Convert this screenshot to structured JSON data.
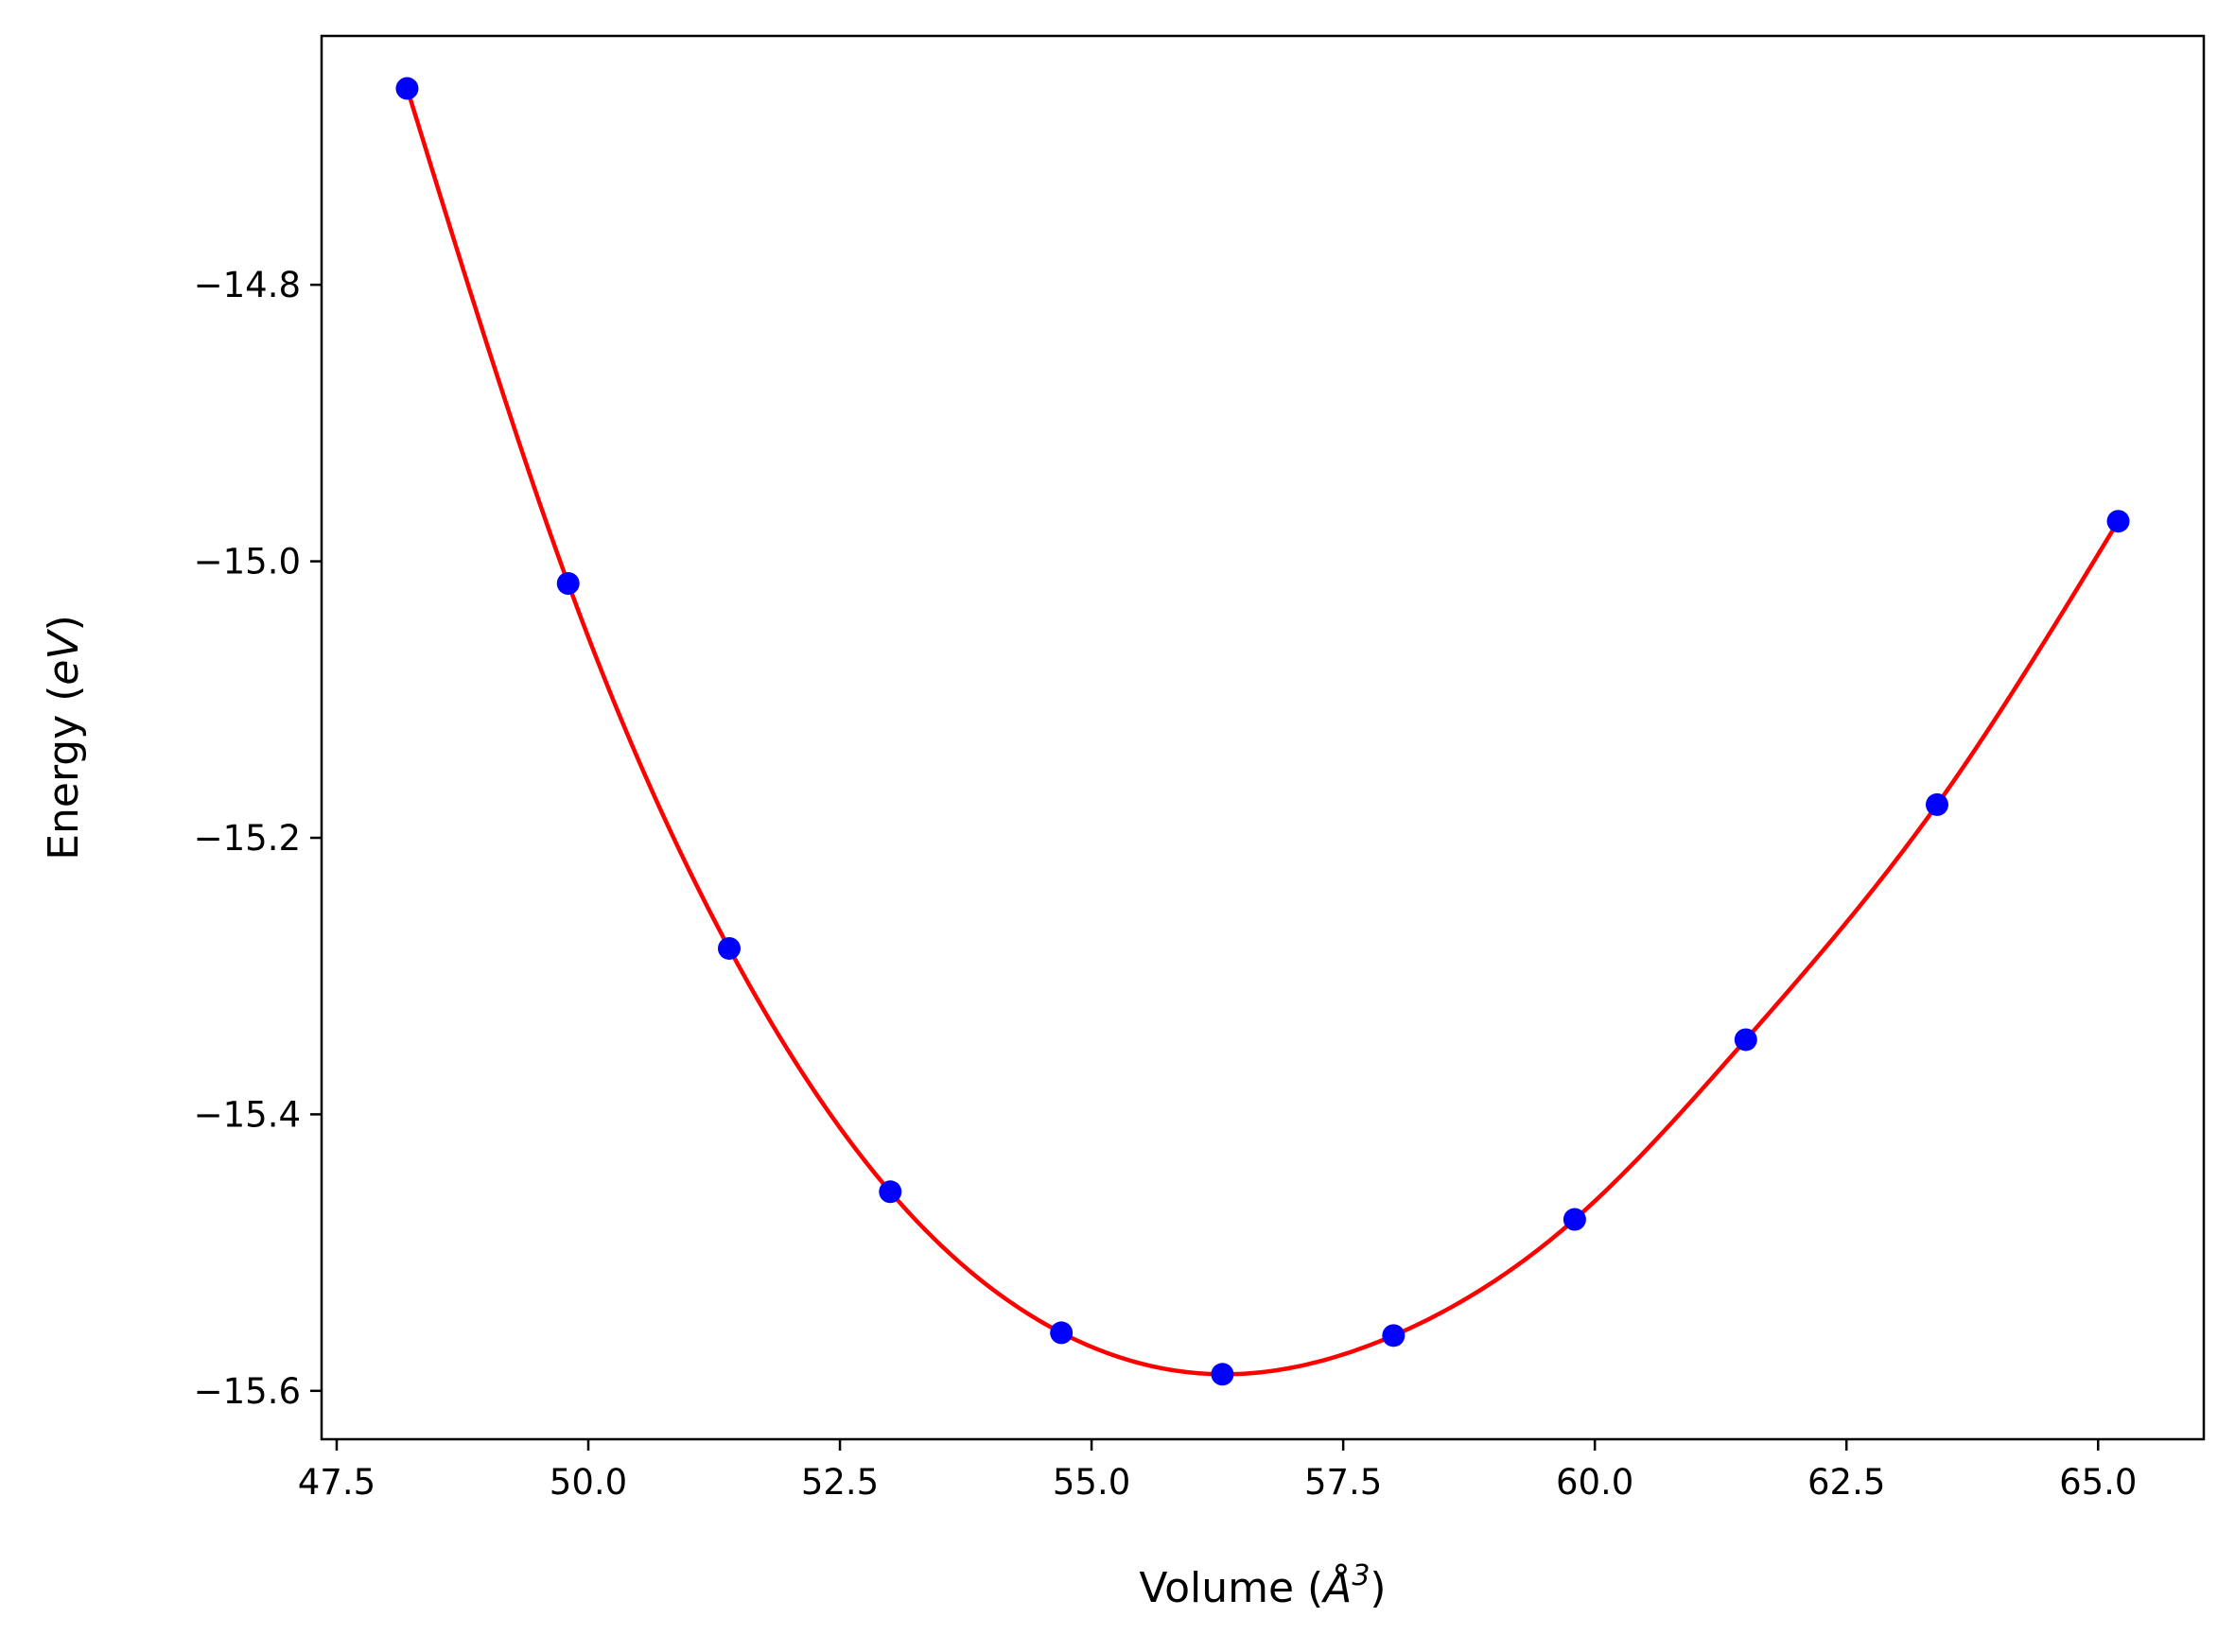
{
  "chart_data": {
    "type": "line",
    "title": "",
    "xlabel_parts": {
      "prefix": "Volume (",
      "symbol": "Å",
      "exponent": "3",
      "suffix": ")"
    },
    "ylabel_parts": {
      "prefix": "Energy (",
      "unit": "eV",
      "suffix": ")"
    },
    "xlim": [
      47.35,
      66.05
    ],
    "ylim": [
      -15.635,
      -14.62
    ],
    "x_ticks": [
      47.5,
      50.0,
      52.5,
      55.0,
      57.5,
      60.0,
      62.5,
      65.0
    ],
    "x_tick_labels": [
      "47.5",
      "50.0",
      "52.5",
      "55.0",
      "57.5",
      "60.0",
      "62.5",
      "65.0"
    ],
    "y_ticks": [
      -14.8,
      -15.0,
      -15.2,
      -15.4,
      -15.6
    ],
    "y_tick_labels": [
      "−14.8",
      "−15.0",
      "−15.2",
      "−15.4",
      "−15.6"
    ],
    "grid": false,
    "legend": "none",
    "series": [
      {
        "kind": "scatter",
        "color": "#0000ff",
        "x": [
          48.2,
          49.8,
          51.4,
          53.0,
          54.7,
          56.3,
          58.0,
          59.8,
          61.5,
          63.4,
          65.2
        ],
        "y": [
          -14.658,
          -15.016,
          -15.28,
          -15.456,
          -15.558,
          -15.588,
          -15.56,
          -15.476,
          -15.346,
          -15.176,
          -14.971
        ]
      },
      {
        "kind": "line",
        "color": "#ff0000",
        "fit": "cubic-spline-through-points"
      }
    ]
  }
}
